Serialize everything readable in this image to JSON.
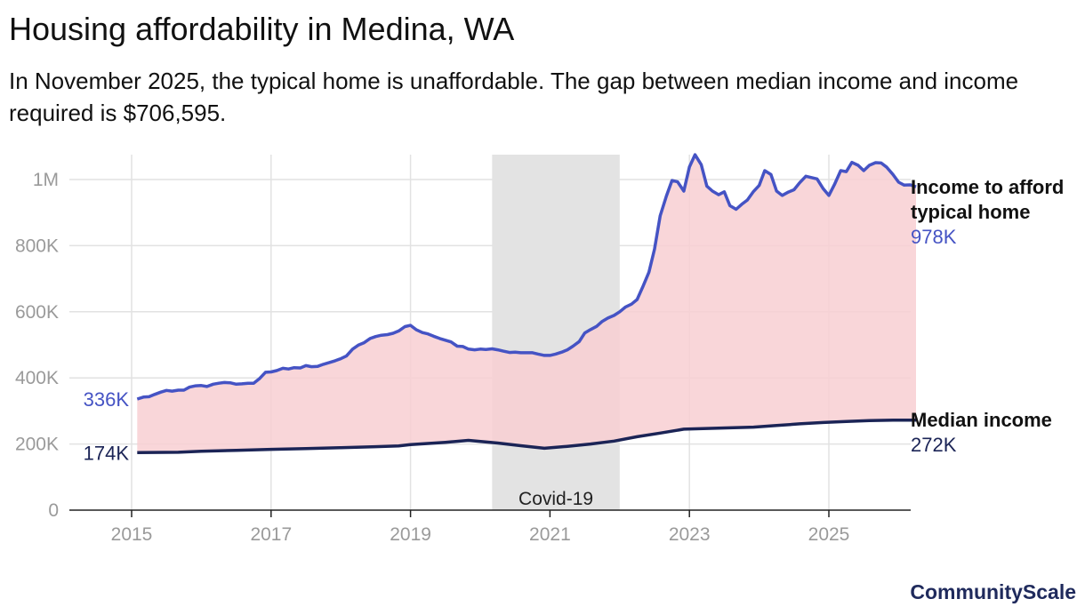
{
  "title": "Housing affordability in Medina, WA",
  "subtitle": "In November 2025, the typical home is unaffordable. The gap between median income and income required is $706,595.",
  "brand": "CommunityScale",
  "colors": {
    "required": "#4553c4",
    "income": "#1b2456",
    "gap_fill": "#f8cfd2",
    "covid": "#e3e3e3",
    "grid": "#e2e2e2"
  },
  "chart_data": {
    "type": "area",
    "title": "Housing affordability in Medina, WA",
    "xlabel": "",
    "ylabel": "",
    "xlim": [
      2014.2,
      2026.1
    ],
    "ylim": [
      0,
      1075000
    ],
    "x_ticks": [
      2015,
      2017,
      2019,
      2021,
      2023,
      2025
    ],
    "x_tick_labels": [
      "2015",
      "2017",
      "2019",
      "2021",
      "2023",
      "2025"
    ],
    "y_ticks": [
      0,
      200000,
      400000,
      600000,
      800000,
      1000000
    ],
    "y_tick_labels": [
      "0",
      "200K",
      "400K",
      "600K",
      "800K",
      "1M"
    ],
    "annotations": [
      {
        "label": "Covid-19",
        "x_start": 2020.17,
        "x_end": 2022.0
      }
    ],
    "series": [
      {
        "name": "Income to afford typical home",
        "label_line1": "Income to afford",
        "label_line2": "typical home",
        "end_value_label": "978K",
        "start_value_label": "336K",
        "points": [
          [
            2015.08,
            336000
          ],
          [
            2015.17,
            342000
          ],
          [
            2015.25,
            343000
          ],
          [
            2015.33,
            350000
          ],
          [
            2015.42,
            357000
          ],
          [
            2015.5,
            362000
          ],
          [
            2015.58,
            360000
          ],
          [
            2015.67,
            363000
          ],
          [
            2015.75,
            363000
          ],
          [
            2015.83,
            372000
          ],
          [
            2015.92,
            376000
          ],
          [
            2016.0,
            377000
          ],
          [
            2016.08,
            374000
          ],
          [
            2016.17,
            381000
          ],
          [
            2016.25,
            384000
          ],
          [
            2016.33,
            386000
          ],
          [
            2016.42,
            385000
          ],
          [
            2016.5,
            381000
          ],
          [
            2016.58,
            382000
          ],
          [
            2016.67,
            384000
          ],
          [
            2016.75,
            384000
          ],
          [
            2016.83,
            397000
          ],
          [
            2016.92,
            417000
          ],
          [
            2017.0,
            418000
          ],
          [
            2017.08,
            422000
          ],
          [
            2017.17,
            429000
          ],
          [
            2017.25,
            427000
          ],
          [
            2017.33,
            431000
          ],
          [
            2017.42,
            430000
          ],
          [
            2017.5,
            437000
          ],
          [
            2017.58,
            434000
          ],
          [
            2017.67,
            435000
          ],
          [
            2017.75,
            441000
          ],
          [
            2017.83,
            446000
          ],
          [
            2017.92,
            452000
          ],
          [
            2018.0,
            458000
          ],
          [
            2018.08,
            466000
          ],
          [
            2018.17,
            487000
          ],
          [
            2018.25,
            499000
          ],
          [
            2018.33,
            506000
          ],
          [
            2018.42,
            519000
          ],
          [
            2018.5,
            525000
          ],
          [
            2018.58,
            529000
          ],
          [
            2018.67,
            531000
          ],
          [
            2018.75,
            535000
          ],
          [
            2018.83,
            542000
          ],
          [
            2018.92,
            555000
          ],
          [
            2019.0,
            559000
          ],
          [
            2019.08,
            546000
          ],
          [
            2019.17,
            537000
          ],
          [
            2019.25,
            533000
          ],
          [
            2019.33,
            526000
          ],
          [
            2019.42,
            519000
          ],
          [
            2019.5,
            514000
          ],
          [
            2019.58,
            509000
          ],
          [
            2019.67,
            496000
          ],
          [
            2019.75,
            495000
          ],
          [
            2019.83,
            487000
          ],
          [
            2019.92,
            485000
          ],
          [
            2020.0,
            487000
          ],
          [
            2020.08,
            486000
          ],
          [
            2020.17,
            488000
          ],
          [
            2020.25,
            485000
          ],
          [
            2020.33,
            481000
          ],
          [
            2020.42,
            477000
          ],
          [
            2020.5,
            478000
          ],
          [
            2020.58,
            476000
          ],
          [
            2020.67,
            476000
          ],
          [
            2020.75,
            476000
          ],
          [
            2020.83,
            472000
          ],
          [
            2020.92,
            468000
          ],
          [
            2021.0,
            468000
          ],
          [
            2021.08,
            472000
          ],
          [
            2021.17,
            478000
          ],
          [
            2021.25,
            485000
          ],
          [
            2021.33,
            496000
          ],
          [
            2021.42,
            510000
          ],
          [
            2021.5,
            536000
          ],
          [
            2021.58,
            546000
          ],
          [
            2021.67,
            556000
          ],
          [
            2021.75,
            571000
          ],
          [
            2021.83,
            581000
          ],
          [
            2021.92,
            589000
          ],
          [
            2022.0,
            600000
          ],
          [
            2022.08,
            614000
          ],
          [
            2022.17,
            623000
          ],
          [
            2022.25,
            637000
          ],
          [
            2022.33,
            675000
          ],
          [
            2022.42,
            720000
          ],
          [
            2022.5,
            790000
          ],
          [
            2022.58,
            890000
          ],
          [
            2022.67,
            950000
          ],
          [
            2022.75,
            997000
          ],
          [
            2022.83,
            993000
          ],
          [
            2022.92,
            965000
          ],
          [
            2023.0,
            1038000
          ],
          [
            2023.08,
            1075000
          ],
          [
            2023.17,
            1045000
          ],
          [
            2023.25,
            980000
          ],
          [
            2023.33,
            965000
          ],
          [
            2023.42,
            954000
          ],
          [
            2023.5,
            963000
          ],
          [
            2023.58,
            921000
          ],
          [
            2023.67,
            910000
          ],
          [
            2023.75,
            925000
          ],
          [
            2023.83,
            938000
          ],
          [
            2023.92,
            964000
          ],
          [
            2024.0,
            982000
          ],
          [
            2024.08,
            1027000
          ],
          [
            2024.17,
            1015000
          ],
          [
            2024.25,
            965000
          ],
          [
            2024.33,
            952000
          ],
          [
            2024.42,
            962000
          ],
          [
            2024.5,
            969000
          ],
          [
            2024.58,
            990000
          ],
          [
            2024.67,
            1010000
          ],
          [
            2024.75,
            1006000
          ],
          [
            2024.83,
            1002000
          ],
          [
            2024.92,
            972000
          ],
          [
            2025.0,
            952000
          ],
          [
            2025.08,
            985000
          ],
          [
            2025.17,
            1027000
          ],
          [
            2025.25,
            1024000
          ],
          [
            2025.33,
            1052000
          ],
          [
            2025.42,
            1043000
          ],
          [
            2025.5,
            1027000
          ],
          [
            2025.58,
            1043000
          ],
          [
            2025.67,
            1051000
          ],
          [
            2025.75,
            1050000
          ],
          [
            2025.83,
            1037000
          ],
          [
            2025.92,
            1015000
          ],
          [
            2026.0,
            992000
          ],
          [
            2026.08,
            983000
          ],
          [
            2026.17,
            984000
          ],
          [
            2026.25,
            978000
          ]
        ]
      },
      {
        "name": "Median income",
        "label_line1": "Median income",
        "end_value_label": "272K",
        "start_value_label": "174K",
        "points": [
          [
            2015.08,
            174000
          ],
          [
            2015.67,
            175000
          ],
          [
            2016.0,
            178000
          ],
          [
            2016.5,
            181000
          ],
          [
            2017.0,
            184000
          ],
          [
            2017.5,
            186000
          ],
          [
            2018.0,
            189000
          ],
          [
            2018.5,
            192000
          ],
          [
            2018.83,
            194000
          ],
          [
            2019.0,
            198000
          ],
          [
            2019.5,
            205000
          ],
          [
            2019.83,
            211000
          ],
          [
            2020.25,
            203000
          ],
          [
            2020.58,
            195000
          ],
          [
            2020.92,
            187000
          ],
          [
            2021.25,
            193000
          ],
          [
            2021.58,
            200000
          ],
          [
            2021.92,
            209000
          ],
          [
            2022.25,
            222000
          ],
          [
            2022.58,
            233000
          ],
          [
            2022.92,
            245000
          ],
          [
            2023.25,
            247000
          ],
          [
            2023.58,
            249000
          ],
          [
            2023.92,
            251000
          ],
          [
            2024.25,
            256000
          ],
          [
            2024.58,
            261000
          ],
          [
            2024.92,
            265000
          ],
          [
            2025.25,
            268000
          ],
          [
            2025.58,
            271000
          ],
          [
            2025.92,
            272000
          ],
          [
            2026.25,
            272000
          ]
        ]
      }
    ]
  }
}
